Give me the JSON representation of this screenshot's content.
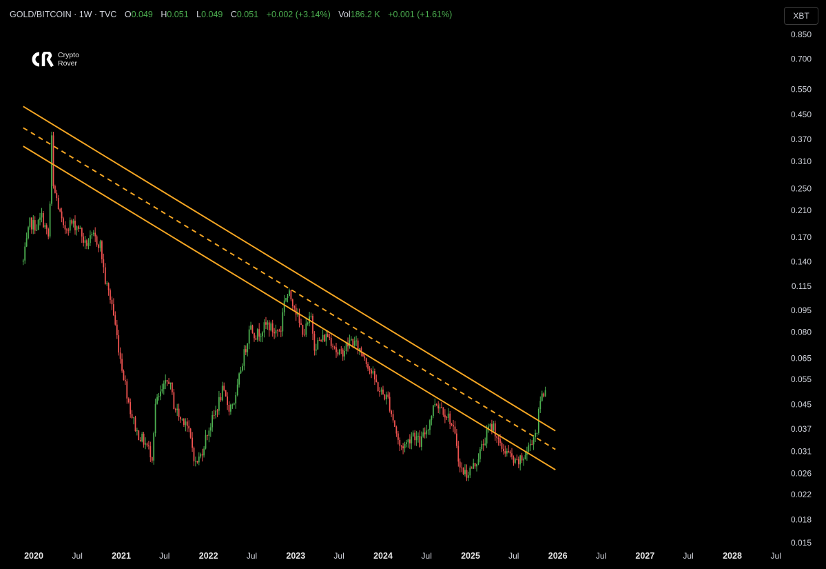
{
  "header": {
    "symbol": "GOLD/BITCOIN · 1W · TVC",
    "open_label": "O",
    "open_value": "0.049",
    "high_label": "H",
    "high_value": "0.051",
    "low_label": "L",
    "low_value": "0.049",
    "close_label": "C",
    "close_value": "0.051",
    "change": "+0.002 (+3.14%)",
    "vol_label": "Vol",
    "vol_value": "186.2 K",
    "vol_change": "+0.001 (+1.61%)"
  },
  "logo": {
    "line1": "Crypto",
    "line2": "Rover"
  },
  "currency_button": "XBT",
  "colors": {
    "background": "#000000",
    "up": "#4caf50",
    "down": "#ef5350",
    "channel": "#f5a623",
    "text": "#d1d4dc"
  },
  "chart_data": {
    "type": "candlestick",
    "scale": "log",
    "y_ticks": [
      "0.850",
      "0.700",
      "0.550",
      "0.450",
      "0.370",
      "0.310",
      "0.250",
      "0.210",
      "0.170",
      "0.140",
      "0.115",
      "0.095",
      "0.080",
      "0.065",
      "0.055",
      "0.045",
      "0.037",
      "0.031",
      "0.026",
      "0.022",
      "0.018",
      "0.015"
    ],
    "x_ticks": [
      {
        "label": "2020",
        "kind": "year"
      },
      {
        "label": "Jul",
        "kind": "month"
      },
      {
        "label": "2021",
        "kind": "year"
      },
      {
        "label": "Jul",
        "kind": "month"
      },
      {
        "label": "2022",
        "kind": "year"
      },
      {
        "label": "Jul",
        "kind": "month"
      },
      {
        "label": "2023",
        "kind": "year"
      },
      {
        "label": "Jul",
        "kind": "month"
      },
      {
        "label": "2024",
        "kind": "year"
      },
      {
        "label": "Jul",
        "kind": "month"
      },
      {
        "label": "2025",
        "kind": "year"
      },
      {
        "label": "Jul",
        "kind": "month"
      },
      {
        "label": "2026",
        "kind": "year"
      },
      {
        "label": "Jul",
        "kind": "month"
      },
      {
        "label": "2027",
        "kind": "year"
      },
      {
        "label": "Jul",
        "kind": "month"
      },
      {
        "label": "2028",
        "kind": "year"
      },
      {
        "label": "Jul",
        "kind": "month"
      }
    ],
    "price_path": [
      [
        "2019-11-18",
        0.14
      ],
      [
        "2019-12-16",
        0.19
      ],
      [
        "2020-01-13",
        0.185
      ],
      [
        "2020-02-03",
        0.2
      ],
      [
        "2020-03-02",
        0.17
      ],
      [
        "2020-03-09",
        0.22
      ],
      [
        "2020-03-16",
        0.37
      ],
      [
        "2020-03-23",
        0.25
      ],
      [
        "2020-04-06",
        0.23
      ],
      [
        "2020-05-04",
        0.18
      ],
      [
        "2020-06-01",
        0.19
      ],
      [
        "2020-07-06",
        0.185
      ],
      [
        "2020-08-03",
        0.16
      ],
      [
        "2020-09-07",
        0.17
      ],
      [
        "2020-10-05",
        0.16
      ],
      [
        "2020-10-26",
        0.12
      ],
      [
        "2020-11-23",
        0.1
      ],
      [
        "2020-12-28",
        0.065
      ],
      [
        "2021-02-08",
        0.043
      ],
      [
        "2021-03-08",
        0.036
      ],
      [
        "2021-04-12",
        0.033
      ],
      [
        "2021-05-10",
        0.03
      ],
      [
        "2021-05-24",
        0.045
      ],
      [
        "2021-06-21",
        0.05
      ],
      [
        "2021-07-19",
        0.055
      ],
      [
        "2021-08-09",
        0.045
      ],
      [
        "2021-09-06",
        0.04
      ],
      [
        "2021-09-27",
        0.04
      ],
      [
        "2021-10-25",
        0.032
      ],
      [
        "2021-11-08",
        0.028
      ],
      [
        "2021-11-29",
        0.03
      ],
      [
        "2021-12-27",
        0.036
      ],
      [
        "2022-01-24",
        0.041
      ],
      [
        "2022-02-28",
        0.05
      ],
      [
        "2022-03-28",
        0.044
      ],
      [
        "2022-04-25",
        0.047
      ],
      [
        "2022-05-16",
        0.06
      ],
      [
        "2022-06-13",
        0.075
      ],
      [
        "2022-06-20",
        0.085
      ],
      [
        "2022-07-18",
        0.078
      ],
      [
        "2022-08-15",
        0.082
      ],
      [
        "2022-09-05",
        0.085
      ],
      [
        "2022-10-03",
        0.08
      ],
      [
        "2022-10-31",
        0.082
      ],
      [
        "2022-11-14",
        0.105
      ],
      [
        "2022-12-05",
        0.107
      ],
      [
        "2022-12-26",
        0.1
      ],
      [
        "2023-01-16",
        0.085
      ],
      [
        "2023-02-06",
        0.08
      ],
      [
        "2023-03-06",
        0.09
      ],
      [
        "2023-03-20",
        0.072
      ],
      [
        "2023-04-17",
        0.075
      ],
      [
        "2023-05-15",
        0.078
      ],
      [
        "2023-06-12",
        0.072
      ],
      [
        "2023-06-26",
        0.066
      ],
      [
        "2023-07-24",
        0.07
      ],
      [
        "2023-08-21",
        0.075
      ],
      [
        "2023-09-11",
        0.072
      ],
      [
        "2023-10-16",
        0.066
      ],
      [
        "2023-11-13",
        0.058
      ],
      [
        "2023-12-18",
        0.05
      ],
      [
        "2024-01-22",
        0.047
      ],
      [
        "2024-02-19",
        0.038
      ],
      [
        "2024-03-11",
        0.032
      ],
      [
        "2024-04-08",
        0.033
      ],
      [
        "2024-05-06",
        0.036
      ],
      [
        "2024-06-03",
        0.033
      ],
      [
        "2024-07-08",
        0.038
      ],
      [
        "2024-08-05",
        0.046
      ],
      [
        "2024-09-02",
        0.044
      ],
      [
        "2024-10-07",
        0.04
      ],
      [
        "2024-11-04",
        0.033
      ],
      [
        "2024-11-18",
        0.027
      ],
      [
        "2024-12-16",
        0.026
      ],
      [
        "2025-01-20",
        0.028
      ],
      [
        "2025-02-24",
        0.033
      ],
      [
        "2025-03-17",
        0.037
      ],
      [
        "2025-04-07",
        0.038
      ],
      [
        "2025-05-05",
        0.032
      ],
      [
        "2025-06-02",
        0.031
      ],
      [
        "2025-07-07",
        0.028
      ],
      [
        "2025-08-04",
        0.029
      ],
      [
        "2025-08-25",
        0.031
      ],
      [
        "2025-09-15",
        0.034
      ],
      [
        "2025-10-06",
        0.037
      ],
      [
        "2025-10-20",
        0.047
      ],
      [
        "2025-11-10",
        0.051
      ]
    ],
    "channel": {
      "upper": [
        [
          "2019-11-18",
          0.48
        ],
        [
          "2025-12-22",
          0.0365
        ]
      ],
      "middle": [
        [
          "2019-11-18",
          0.405
        ],
        [
          "2025-12-22",
          0.0315
        ]
      ],
      "lower": [
        [
          "2019-11-18",
          0.35
        ],
        [
          "2025-12-22",
          0.0268
        ]
      ]
    }
  }
}
